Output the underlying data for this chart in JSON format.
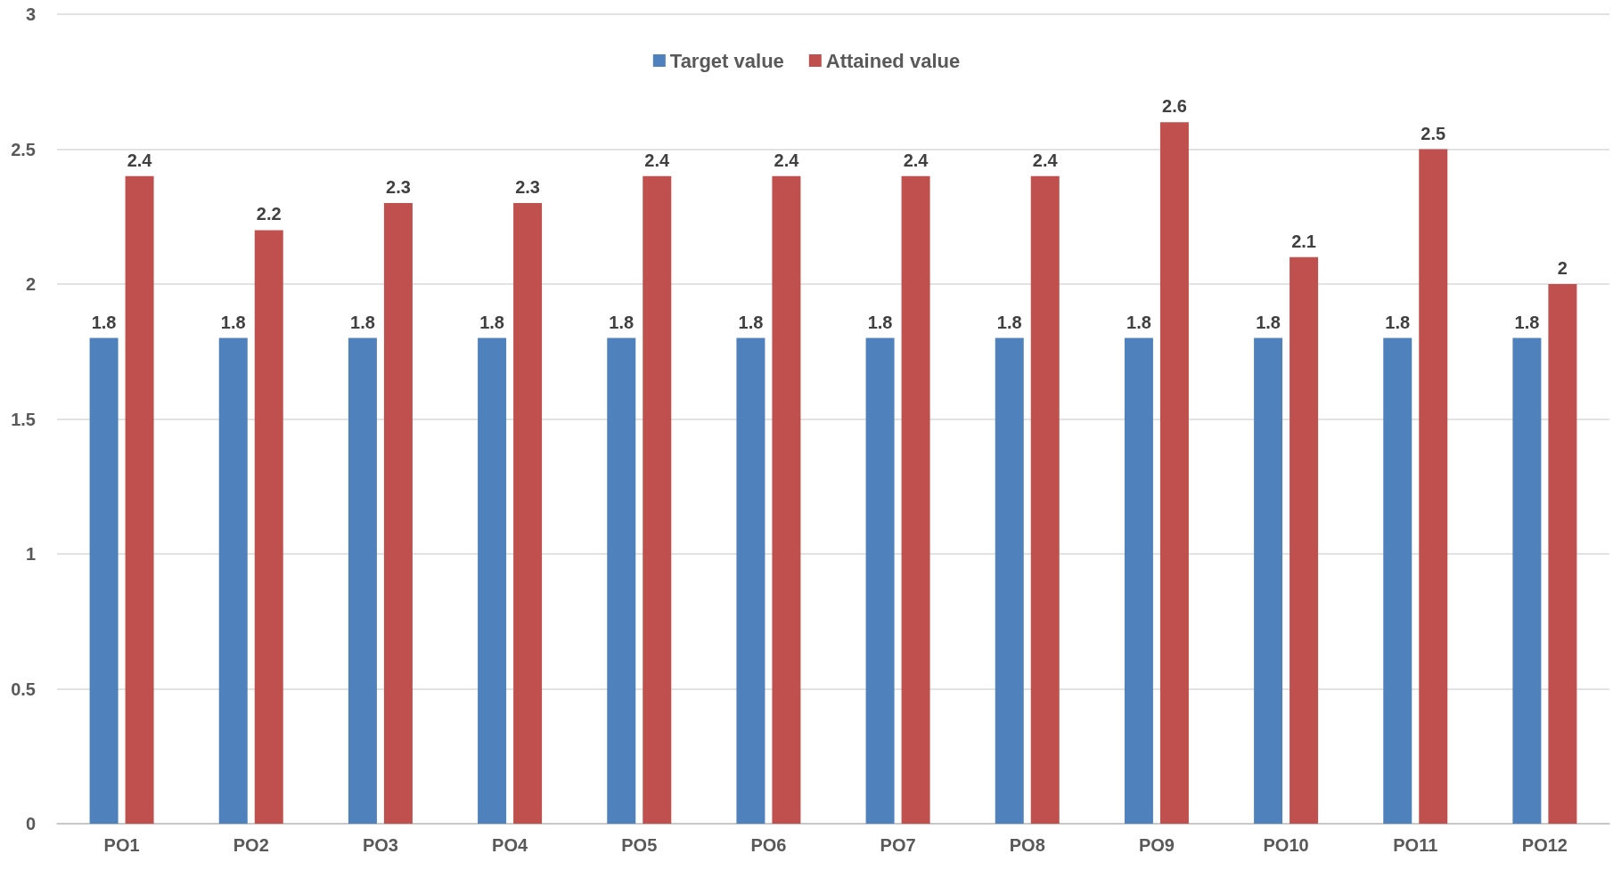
{
  "chart_data": {
    "type": "bar",
    "categories": [
      "PO1",
      "PO2",
      "PO3",
      "PO4",
      "PO5",
      "PO6",
      "PO7",
      "PO8",
      "PO9",
      "PO10",
      "PO11",
      "PO12"
    ],
    "series": [
      {
        "name": "Target value",
        "color": "#4f81bd",
        "values": [
          1.8,
          1.8,
          1.8,
          1.8,
          1.8,
          1.8,
          1.8,
          1.8,
          1.8,
          1.8,
          1.8,
          1.8
        ]
      },
      {
        "name": "Attained value",
        "color": "#c0504d",
        "values": [
          2.4,
          2.2,
          2.3,
          2.3,
          2.4,
          2.4,
          2.4,
          2.4,
          2.6,
          2.1,
          2.5,
          2.0
        ]
      }
    ],
    "ylim": [
      0,
      3
    ],
    "yticks": [
      0,
      0.5,
      1,
      1.5,
      2,
      2.5,
      3
    ],
    "grid": "y",
    "legend": "top",
    "data_labels": true
  }
}
